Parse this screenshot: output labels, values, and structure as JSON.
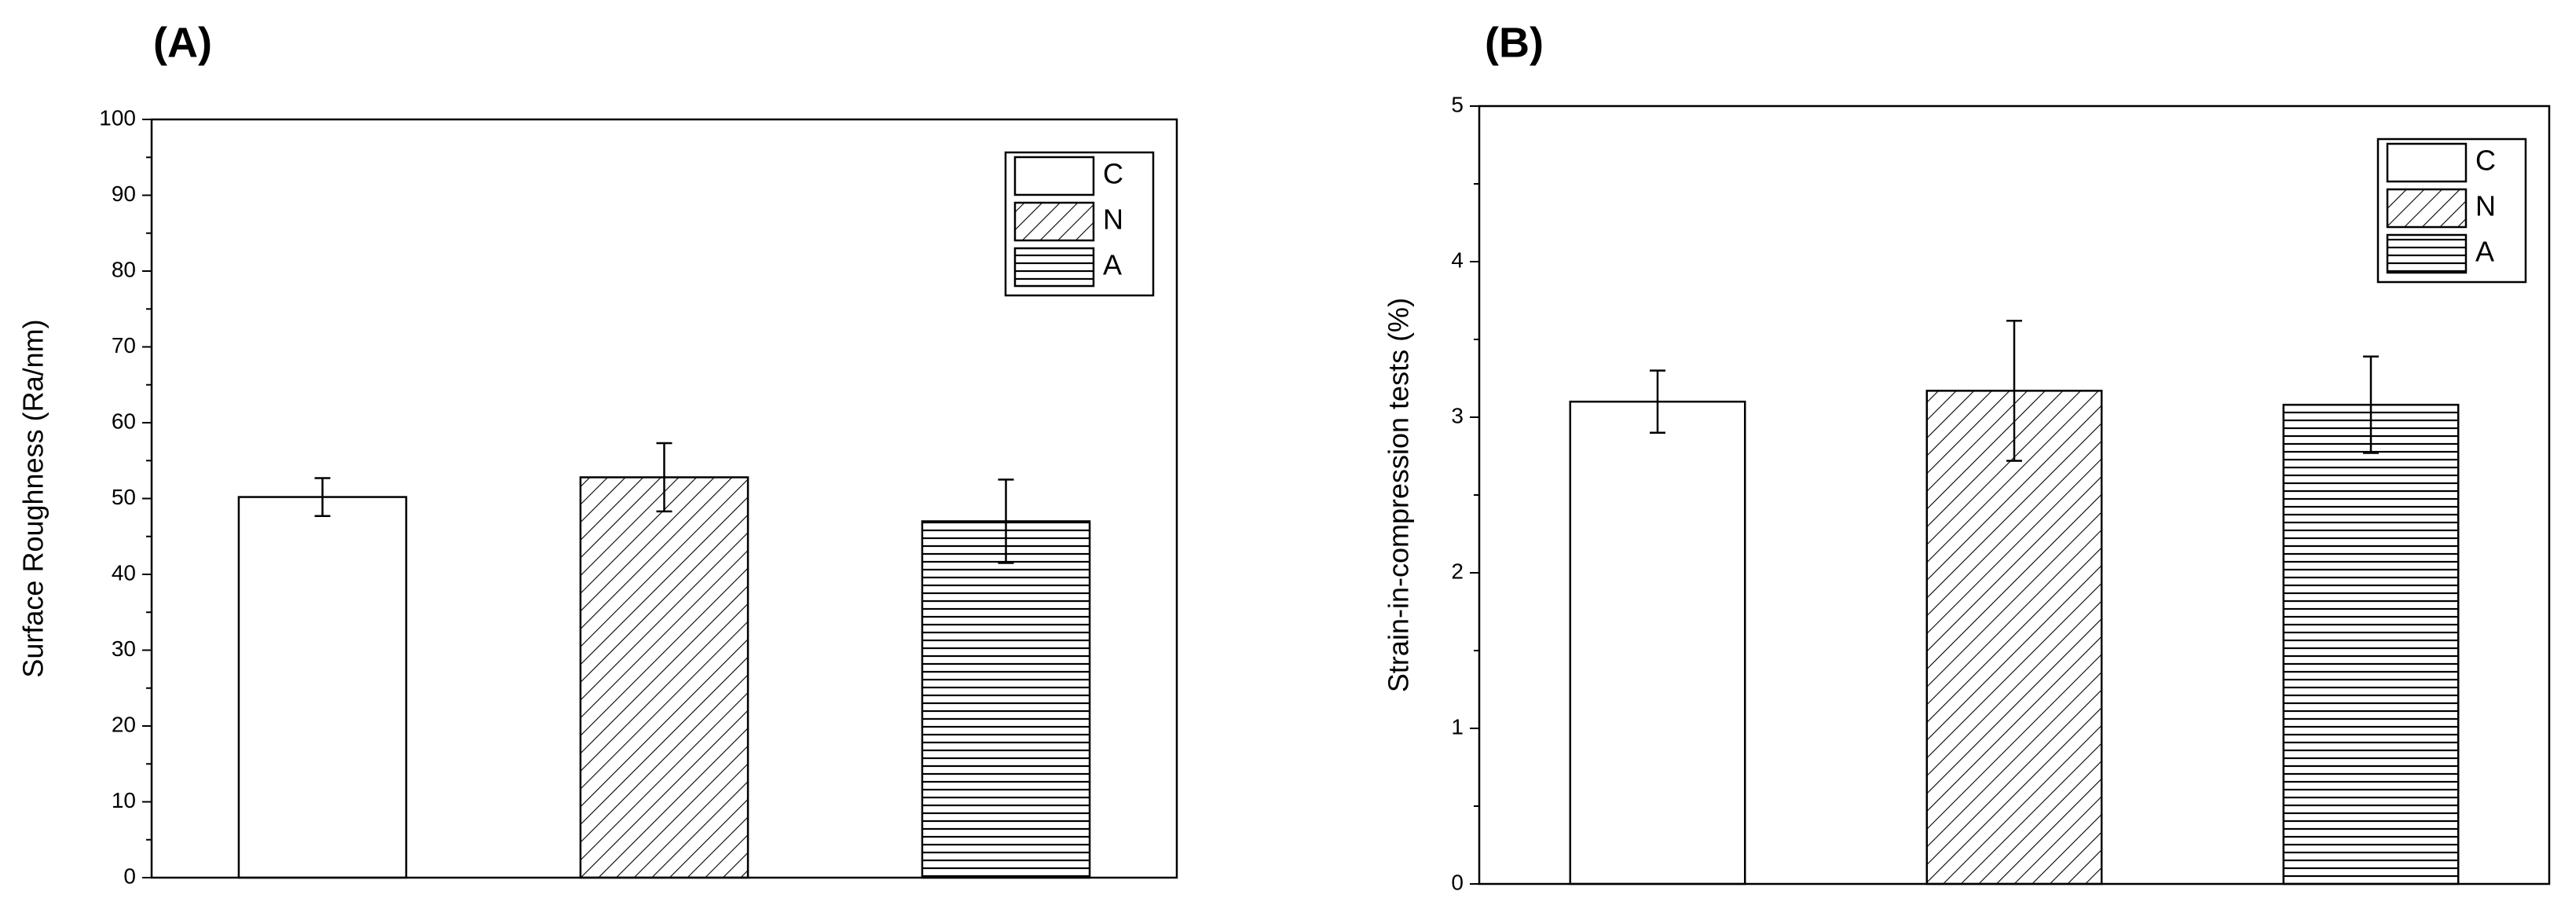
{
  "chart_data": [
    {
      "type": "bar",
      "title": "(A)",
      "y_label": "Surface Roughness (Ra/nm)",
      "categories": [
        null,
        null,
        null
      ],
      "series": [
        {
          "name": "C",
          "color": "#000000",
          "pattern": "none",
          "values": [
            50.2,
            null,
            null
          ],
          "errors": [
            2.5,
            null,
            null
          ]
        },
        {
          "name": "N",
          "color": "#000000",
          "pattern": "diagonal",
          "values": [
            null,
            52.8,
            null
          ],
          "errors": [
            null,
            4.5,
            null
          ]
        },
        {
          "name": "A",
          "color": "#000000",
          "pattern": "horizontal",
          "values": [
            null,
            null,
            47
          ],
          "errors": [
            null,
            null,
            5.5
          ]
        }
      ],
      "ylim": [
        0,
        100
      ],
      "yticks": [
        0,
        10,
        20,
        30,
        40,
        50,
        60,
        70,
        80,
        90,
        100
      ],
      "yminorticks": [
        5,
        15,
        25,
        35,
        45,
        55,
        65,
        75,
        85,
        95
      ],
      "legend": "upper right",
      "grid": false
    },
    {
      "type": "bar",
      "title": "(B)",
      "y_label": "Strain-in-compression tests (%)",
      "categories": [
        null,
        null,
        null
      ],
      "series": [
        {
          "name": "C",
          "color": "#000000",
          "pattern": "none",
          "values": [
            3.1,
            null,
            null
          ],
          "errors": [
            0.2,
            null,
            null
          ]
        },
        {
          "name": "N",
          "color": "#000000",
          "pattern": "diagonal",
          "values": [
            null,
            3.17,
            null
          ],
          "errors": [
            null,
            0.45,
            null
          ]
        },
        {
          "name": "A",
          "color": "#000000",
          "pattern": "horizontal",
          "values": [
            null,
            null,
            3.08
          ],
          "errors": [
            null,
            null,
            0.31
          ]
        }
      ],
      "ylim": [
        0,
        5
      ],
      "yticks": [
        0,
        1,
        2,
        3,
        4,
        5
      ],
      "yminorticks": [
        0.5,
        1.5,
        2.5,
        3.5,
        4.5
      ],
      "legend": "upper right",
      "grid": false
    }
  ]
}
